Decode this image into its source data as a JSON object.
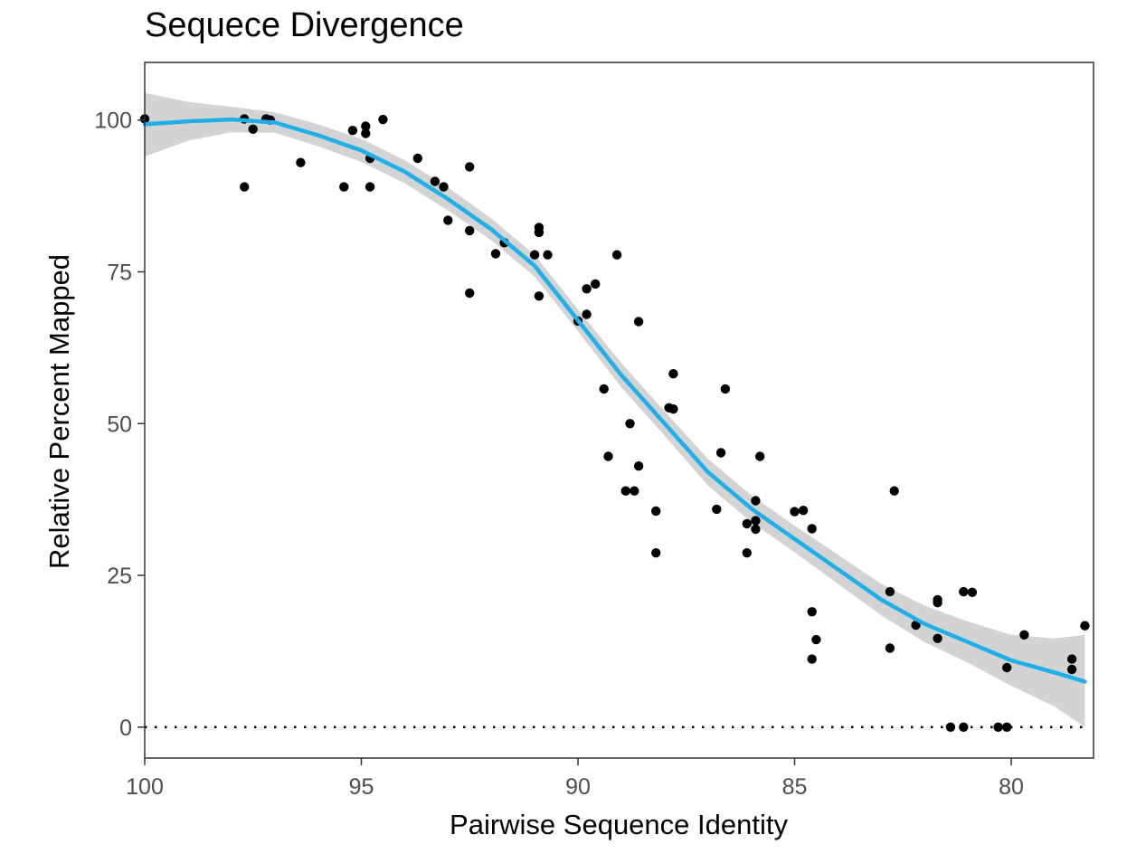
{
  "chart_data": {
    "type": "scatter",
    "title": "Sequece Divergence",
    "xlabel": "Pairwise Sequence Identity",
    "ylabel": "Relative Percent Mapped",
    "x_reversed": true,
    "xlim": [
      100,
      78.1
    ],
    "ylim": [
      -5.1,
      109.5
    ],
    "x_ticks": [
      100,
      95,
      90,
      85,
      80
    ],
    "x_tick_labels": [
      "100",
      "95",
      "90",
      "85",
      "80"
    ],
    "y_ticks": [
      0,
      25,
      50,
      75,
      100
    ],
    "y_tick_labels": [
      "0",
      "25",
      "50",
      "75",
      "100"
    ],
    "grid": false,
    "legend": "none",
    "colors": {
      "points": "#000000",
      "fit_line": "#1eaee8",
      "ci_band": "#d3d3d3",
      "reference_line": "#000000",
      "panel_border": "#333333"
    },
    "points": [
      [
        100.0,
        100.2
      ],
      [
        97.7,
        100.2
      ],
      [
        97.5,
        98.5
      ],
      [
        97.2,
        100.2
      ],
      [
        97.1,
        100.0
      ],
      [
        97.7,
        89.0
      ],
      [
        96.4,
        93.0
      ],
      [
        95.2,
        98.3
      ],
      [
        94.9,
        99.0
      ],
      [
        94.9,
        97.8
      ],
      [
        94.5,
        100.1
      ],
      [
        95.4,
        89.0
      ],
      [
        94.8,
        93.7
      ],
      [
        94.8,
        89.0
      ],
      [
        93.7,
        93.7
      ],
      [
        93.3,
        89.9
      ],
      [
        93.1,
        89.0
      ],
      [
        93.0,
        83.5
      ],
      [
        92.5,
        92.3
      ],
      [
        92.5,
        81.8
      ],
      [
        92.5,
        71.5
      ],
      [
        91.9,
        78.0
      ],
      [
        91.7,
        79.8
      ],
      [
        91.0,
        77.8
      ],
      [
        90.9,
        82.3
      ],
      [
        90.9,
        81.5
      ],
      [
        90.7,
        77.8
      ],
      [
        90.9,
        71.0
      ],
      [
        90.0,
        66.9
      ],
      [
        89.8,
        72.2
      ],
      [
        89.6,
        73.0
      ],
      [
        89.8,
        68.0
      ],
      [
        89.1,
        77.8
      ],
      [
        89.4,
        55.7
      ],
      [
        89.3,
        44.6
      ],
      [
        88.8,
        50.0
      ],
      [
        88.9,
        38.9
      ],
      [
        88.7,
        38.9
      ],
      [
        88.6,
        43.0
      ],
      [
        88.6,
        66.8
      ],
      [
        88.2,
        35.6
      ],
      [
        88.2,
        28.7
      ],
      [
        87.8,
        58.2
      ],
      [
        87.9,
        52.6
      ],
      [
        87.8,
        52.4
      ],
      [
        86.6,
        55.7
      ],
      [
        86.7,
        45.2
      ],
      [
        86.1,
        28.7
      ],
      [
        86.8,
        35.9
      ],
      [
        86.1,
        33.5
      ],
      [
        85.9,
        37.3
      ],
      [
        85.9,
        34.0
      ],
      [
        85.9,
        32.6
      ],
      [
        85.8,
        44.6
      ],
      [
        85.0,
        35.5
      ],
      [
        84.8,
        35.7
      ],
      [
        84.6,
        32.7
      ],
      [
        84.6,
        19.0
      ],
      [
        84.6,
        11.2
      ],
      [
        84.5,
        14.4
      ],
      [
        82.7,
        38.9
      ],
      [
        82.8,
        22.3
      ],
      [
        82.8,
        13.0
      ],
      [
        82.2,
        16.8
      ],
      [
        81.7,
        21.0
      ],
      [
        81.7,
        20.5
      ],
      [
        81.7,
        14.6
      ],
      [
        81.4,
        0.0
      ],
      [
        81.1,
        22.3
      ],
      [
        80.9,
        22.2
      ],
      [
        81.1,
        0.0
      ],
      [
        80.3,
        0.0
      ],
      [
        80.1,
        0.0
      ],
      [
        80.1,
        9.8
      ],
      [
        79.7,
        15.2
      ],
      [
        78.6,
        11.2
      ],
      [
        78.6,
        9.5
      ],
      [
        78.3,
        16.7
      ]
    ],
    "fit_curve": [
      [
        100.0,
        99.3
      ],
      [
        99.0,
        99.8
      ],
      [
        98.0,
        100.1
      ],
      [
        97.0,
        99.6
      ],
      [
        96.0,
        97.5
      ],
      [
        95.0,
        95.0
      ],
      [
        94.0,
        91.5
      ],
      [
        93.0,
        87.0
      ],
      [
        92.0,
        82.0
      ],
      [
        91.0,
        76.0
      ],
      [
        90.0,
        67.0
      ],
      [
        89.0,
        58.0
      ],
      [
        88.0,
        50.0
      ],
      [
        87.0,
        42.0
      ],
      [
        86.0,
        36.0
      ],
      [
        85.0,
        31.0
      ],
      [
        84.0,
        26.0
      ],
      [
        83.0,
        21.0
      ],
      [
        82.0,
        17.0
      ],
      [
        81.0,
        14.0
      ],
      [
        80.0,
        11.0
      ],
      [
        79.0,
        9.0
      ],
      [
        78.3,
        7.5
      ]
    ],
    "ci_upper": [
      [
        100.0,
        104.5
      ],
      [
        99.0,
        103.0
      ],
      [
        98.0,
        102.2
      ],
      [
        97.0,
        101.3
      ],
      [
        96.0,
        99.3
      ],
      [
        95.0,
        96.9
      ],
      [
        94.0,
        93.4
      ],
      [
        93.0,
        88.9
      ],
      [
        92.0,
        83.8
      ],
      [
        91.0,
        77.8
      ],
      [
        90.0,
        68.8
      ],
      [
        89.0,
        60.0
      ],
      [
        88.0,
        52.0
      ],
      [
        87.0,
        44.2
      ],
      [
        86.0,
        38.2
      ],
      [
        85.0,
        33.2
      ],
      [
        84.0,
        28.4
      ],
      [
        83.0,
        23.6
      ],
      [
        82.0,
        20.0
      ],
      [
        81.0,
        17.4
      ],
      [
        80.0,
        15.2
      ],
      [
        79.0,
        14.6
      ],
      [
        78.3,
        15.2
      ]
    ],
    "ci_lower": [
      [
        100.0,
        94.0
      ],
      [
        99.0,
        96.6
      ],
      [
        98.0,
        98.0
      ],
      [
        97.0,
        97.9
      ],
      [
        96.0,
        95.7
      ],
      [
        95.0,
        93.1
      ],
      [
        94.0,
        89.6
      ],
      [
        93.0,
        85.1
      ],
      [
        92.0,
        80.2
      ],
      [
        91.0,
        74.2
      ],
      [
        90.0,
        65.2
      ],
      [
        89.0,
        56.0
      ],
      [
        88.0,
        48.0
      ],
      [
        87.0,
        39.8
      ],
      [
        86.0,
        33.8
      ],
      [
        85.0,
        28.8
      ],
      [
        84.0,
        23.6
      ],
      [
        83.0,
        18.4
      ],
      [
        82.0,
        14.0
      ],
      [
        81.0,
        10.6
      ],
      [
        80.0,
        6.8
      ],
      [
        79.0,
        3.4
      ],
      [
        78.3,
        0.0
      ]
    ],
    "reference_line": {
      "y": 0,
      "x_from": 100,
      "x_to": 78.3,
      "style": "dotted"
    }
  }
}
